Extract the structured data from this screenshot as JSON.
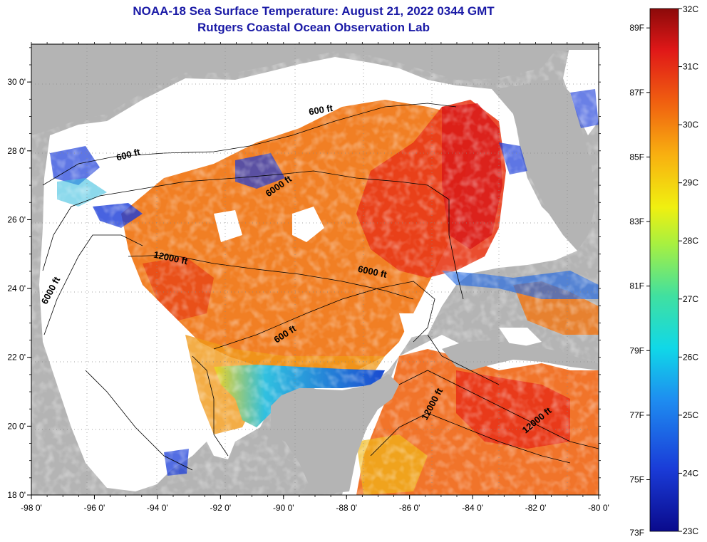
{
  "header": {
    "title": "NOAA-18 Sea Surface Temperature:  August 21, 2022 0344 GMT",
    "subtitle": "Rutgers Coastal Ocean Observation Lab"
  },
  "map": {
    "lon_labels": [
      "-98 0'",
      "-96 0'",
      "-94 0'",
      "-92 0'",
      "-90 0'",
      "-88 0'",
      "-86 0'",
      "-84 0'",
      "-82 0'",
      "-80 0'"
    ],
    "lat_labels": [
      "18 0'",
      "20 0'",
      "22 0'",
      "24 0'",
      "26 0'",
      "28 0'",
      "30 0'"
    ],
    "contour_labels": [
      {
        "text": "600 ft",
        "lon": -94.9,
        "lat": 27.8,
        "rot": -15
      },
      {
        "text": "600 ft",
        "lon": -88.8,
        "lat": 29.1,
        "rot": -10
      },
      {
        "text": "6000 ft",
        "lon": -90.1,
        "lat": 26.9,
        "rot": -35
      },
      {
        "text": "12000 ft",
        "lon": -93.6,
        "lat": 24.8,
        "rot": 12
      },
      {
        "text": "6000 ft",
        "lon": -97.3,
        "lat": 23.9,
        "rot": -62
      },
      {
        "text": "6000 ft",
        "lon": -87.2,
        "lat": 24.4,
        "rot": 12
      },
      {
        "text": "600 ft",
        "lon": -89.9,
        "lat": 22.6,
        "rot": -33
      },
      {
        "text": "12000 ft",
        "lon": -85.2,
        "lat": 20.6,
        "rot": -62
      },
      {
        "text": "12000 ft",
        "lon": -81.9,
        "lat": 20.1,
        "rot": -40
      }
    ]
  },
  "colorbar": {
    "f_labels": [
      "89F",
      "87F",
      "85F",
      "83F",
      "81F",
      "79F",
      "77F",
      "75F",
      "73F"
    ],
    "c_labels": [
      "32C",
      "31C",
      "30C",
      "29C",
      "28C",
      "27C",
      "26C",
      "25C",
      "24C",
      "23C"
    ]
  },
  "colors": {
    "land": "#b4b4b4",
    "cloud": "#ffffff",
    "title": "#1a1aa6"
  }
}
